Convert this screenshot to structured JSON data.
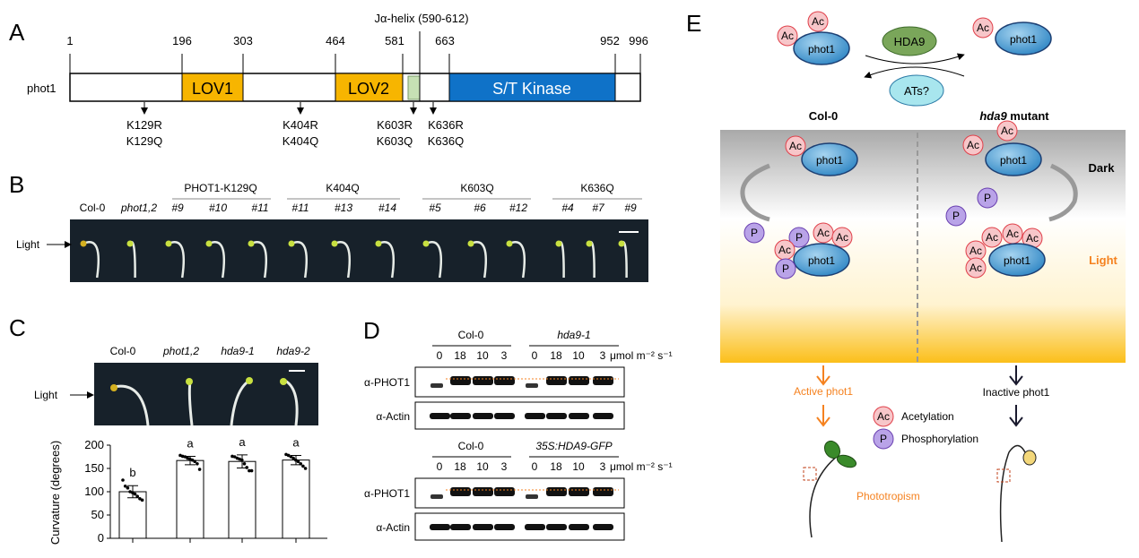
{
  "panels": {
    "a": "A",
    "b": "B",
    "c": "C",
    "d": "D",
    "e": "E"
  },
  "panel_a": {
    "protein": "phot1",
    "positions": [
      "1",
      "196",
      "303",
      "464",
      "581",
      "663",
      "952",
      "996"
    ],
    "domains": {
      "lov1": "LOV1",
      "lov2": "LOV2",
      "kinase": "S/T Kinase"
    },
    "jhelix": "Jα-helix (590-612)",
    "mutations": [
      {
        "r": "K129R",
        "q": "K129Q"
      },
      {
        "r": "K404R",
        "q": "K404Q"
      },
      {
        "r": "K603R",
        "q": "K603Q"
      },
      {
        "r": "K636R",
        "q": "K636Q"
      }
    ],
    "colors": {
      "lov": "#f7b500",
      "kinase": "#0f72c8",
      "jhelix": "#c6e0b4"
    }
  },
  "panel_b": {
    "groups": [
      "PHOT1-K129Q",
      "K404Q",
      "K603Q",
      "K636Q"
    ],
    "lanes": [
      "Col-0",
      "phot1,2",
      "#9",
      "#10",
      "#11",
      "#11",
      "#13",
      "#14",
      "#5",
      "#6",
      "#12",
      "#4",
      "#7",
      "#9"
    ],
    "light": "Light"
  },
  "panel_c": {
    "genotypes": [
      "Col-0",
      "phot1,2",
      "hda9-1",
      "hda9-2"
    ],
    "light": "Light"
  },
  "chart_data": {
    "type": "bar",
    "categories": [
      "Col-0",
      "phot1,2",
      "hda9-1",
      "hda9-2"
    ],
    "values": [
      100,
      167,
      165,
      168
    ],
    "errors": [
      13,
      9,
      14,
      10
    ],
    "letters": [
      "b",
      "a",
      "a",
      "a"
    ],
    "points": [
      [
        125,
        112,
        108,
        100,
        98,
        95,
        90,
        85,
        82
      ],
      [
        178,
        176,
        175,
        172,
        170,
        168,
        165,
        160,
        148
      ],
      [
        176,
        175,
        172,
        170,
        168,
        160,
        152,
        145,
        145
      ],
      [
        180,
        178,
        175,
        172,
        168,
        165,
        160,
        155,
        150
      ]
    ],
    "ylabel": "Curvature (degrees)",
    "yticks": [
      0,
      50,
      100,
      150,
      200
    ],
    "ylim": [
      0,
      200
    ]
  },
  "panel_d": {
    "top": {
      "groups": [
        "Col-0",
        "hda9-1"
      ],
      "lanes": [
        "0",
        "18",
        "10",
        "3",
        "0",
        "18",
        "10",
        "3"
      ],
      "unit": "μmol m⁻² s⁻¹"
    },
    "bottom": {
      "groups": [
        "Col-0",
        "35S:HDA9-GFP"
      ],
      "lanes": [
        "0",
        "18",
        "10",
        "3",
        "0",
        "18",
        "10",
        "3"
      ],
      "unit": "μmol m⁻² s⁻¹"
    },
    "antibodies": {
      "phot1": "α-PHOT1",
      "actin": "α-Actin"
    }
  },
  "panel_e": {
    "phot1": "phot1",
    "ac": "Ac",
    "p": "P",
    "hda9": "HDA9",
    "ats": "ATs?",
    "col0": "Col-0",
    "mutant_italic": "hda9",
    "mutant_rest": " mutant",
    "dark": "Dark",
    "light": "Light",
    "active": "Active phot1",
    "inactive": "Inactive phot1",
    "legend_ac": "Acetylation",
    "legend_p": "Phosphorylation",
    "phototropism": "Phototropism",
    "colors": {
      "phot1": "#4a9fd4",
      "ac": "#f7c6c9",
      "p": "#b9a3e8",
      "hda9": "#6d9a4a",
      "ats": "#a8e6ee",
      "orange": "#f58220"
    }
  }
}
